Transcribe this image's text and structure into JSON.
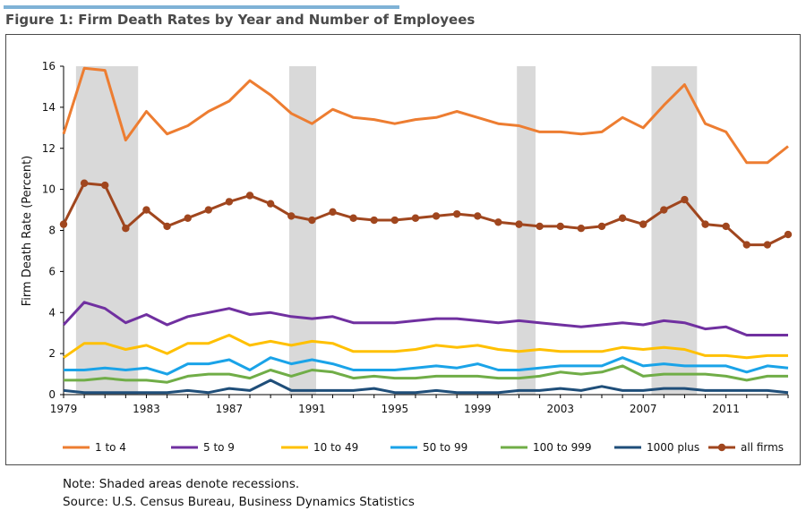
{
  "figure": {
    "title": "Figure 1: Firm Death Rates by Year and Number of Employees",
    "note": "Note: Shaded areas denote recessions.",
    "source": "Source: U.S. Census Bureau, Business Dynamics Statistics"
  },
  "colors": {
    "accent_rule": "#7fb2d6",
    "recession_band": "#d9d9d9"
  },
  "chart_data": {
    "type": "line",
    "title": "Figure 1: Firm Death Rates by Year and Number of Employees",
    "xlabel": "",
    "ylabel": "Firm Death Rate (Percent)",
    "ylim": [
      0,
      16
    ],
    "xlim": [
      1979,
      2014
    ],
    "yticks": [
      0,
      2,
      4,
      6,
      8,
      10,
      12,
      14,
      16
    ],
    "xticks": [
      1979,
      1983,
      1987,
      1991,
      1995,
      1999,
      2003,
      2007,
      2011
    ],
    "grid": false,
    "legend": "bottom",
    "recessions": [
      [
        1979.6,
        1982.6
      ],
      [
        1989.9,
        1991.2
      ],
      [
        2000.9,
        2001.8
      ],
      [
        2007.4,
        2009.6
      ]
    ],
    "x": [
      1979,
      1980,
      1981,
      1982,
      1983,
      1984,
      1985,
      1986,
      1987,
      1988,
      1989,
      1990,
      1991,
      1992,
      1993,
      1994,
      1995,
      1996,
      1997,
      1998,
      1999,
      2000,
      2001,
      2002,
      2003,
      2004,
      2005,
      2006,
      2007,
      2008,
      2009,
      2010,
      2011,
      2012,
      2013,
      2014
    ],
    "series": [
      {
        "name": "1 to 4",
        "color": "#ed7d31",
        "marker": false,
        "values": [
          12.7,
          15.9,
          15.8,
          12.4,
          13.8,
          12.7,
          13.1,
          13.8,
          14.3,
          15.3,
          14.6,
          13.7,
          13.2,
          13.9,
          13.5,
          13.4,
          13.2,
          13.4,
          13.5,
          13.8,
          13.5,
          13.2,
          13.1,
          12.8,
          12.8,
          12.7,
          12.8,
          13.5,
          13.0,
          14.1,
          15.1,
          13.2,
          12.8,
          11.3,
          11.3,
          12.1
        ]
      },
      {
        "name": "5 to 9",
        "color": "#7030a0",
        "marker": false,
        "values": [
          3.4,
          4.5,
          4.2,
          3.5,
          3.9,
          3.4,
          3.8,
          4.0,
          4.2,
          3.9,
          4.0,
          3.8,
          3.7,
          3.8,
          3.5,
          3.5,
          3.5,
          3.6,
          3.7,
          3.7,
          3.6,
          3.5,
          3.6,
          3.5,
          3.4,
          3.3,
          3.4,
          3.5,
          3.4,
          3.6,
          3.5,
          3.2,
          3.3,
          2.9,
          2.9,
          2.9
        ]
      },
      {
        "name": "10 to 49",
        "color": "#ffc000",
        "marker": false,
        "values": [
          1.8,
          2.5,
          2.5,
          2.2,
          2.4,
          2.0,
          2.5,
          2.5,
          2.9,
          2.4,
          2.6,
          2.4,
          2.6,
          2.5,
          2.1,
          2.1,
          2.1,
          2.2,
          2.4,
          2.3,
          2.4,
          2.2,
          2.1,
          2.2,
          2.1,
          2.1,
          2.1,
          2.3,
          2.2,
          2.3,
          2.2,
          1.9,
          1.9,
          1.8,
          1.9,
          1.9
        ]
      },
      {
        "name": "50 to 99",
        "color": "#1aa3e8",
        "marker": false,
        "values": [
          1.2,
          1.2,
          1.3,
          1.2,
          1.3,
          1.0,
          1.5,
          1.5,
          1.7,
          1.2,
          1.8,
          1.5,
          1.7,
          1.5,
          1.2,
          1.2,
          1.2,
          1.3,
          1.4,
          1.3,
          1.5,
          1.2,
          1.2,
          1.3,
          1.4,
          1.4,
          1.4,
          1.8,
          1.4,
          1.5,
          1.4,
          1.4,
          1.4,
          1.1,
          1.4,
          1.3
        ]
      },
      {
        "name": "100 to 999",
        "color": "#70ad47",
        "marker": false,
        "values": [
          0.7,
          0.7,
          0.8,
          0.7,
          0.7,
          0.6,
          0.9,
          1.0,
          1.0,
          0.8,
          1.2,
          0.9,
          1.2,
          1.1,
          0.8,
          0.9,
          0.8,
          0.8,
          0.9,
          0.9,
          0.9,
          0.8,
          0.8,
          0.9,
          1.1,
          1.0,
          1.1,
          1.4,
          0.9,
          1.0,
          1.0,
          1.0,
          0.9,
          0.7,
          0.9,
          0.9
        ]
      },
      {
        "name": "1000 plus",
        "color": "#1f4e79",
        "marker": false,
        "values": [
          0.2,
          0.1,
          0.1,
          0.1,
          0.1,
          0.1,
          0.2,
          0.1,
          0.3,
          0.2,
          0.7,
          0.2,
          0.2,
          0.2,
          0.2,
          0.3,
          0.1,
          0.1,
          0.2,
          0.1,
          0.1,
          0.1,
          0.2,
          0.2,
          0.3,
          0.2,
          0.4,
          0.2,
          0.2,
          0.3,
          0.3,
          0.2,
          0.2,
          0.2,
          0.2,
          0.1
        ]
      },
      {
        "name": "all firms",
        "color": "#a0461e",
        "marker": true,
        "values": [
          8.3,
          10.3,
          10.2,
          8.1,
          9.0,
          8.2,
          8.6,
          9.0,
          9.4,
          9.7,
          9.3,
          8.7,
          8.5,
          8.9,
          8.6,
          8.5,
          8.5,
          8.6,
          8.7,
          8.8,
          8.7,
          8.4,
          8.3,
          8.2,
          8.2,
          8.1,
          8.2,
          8.6,
          8.3,
          9.0,
          9.5,
          8.3,
          8.2,
          7.3,
          7.3,
          7.8
        ]
      }
    ]
  }
}
